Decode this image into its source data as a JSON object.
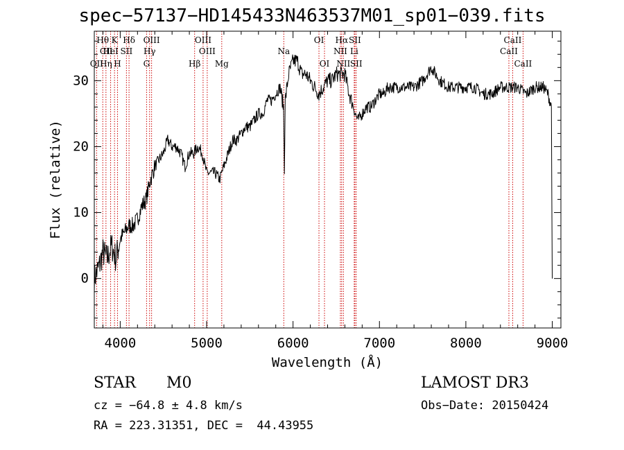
{
  "title": "spec−57137−HD145433N463537M01_sp01−039.fits",
  "chart_data": {
    "type": "line",
    "xlabel": "Wavelength (Å)",
    "ylabel": "Flux (relative)",
    "xlim": [
      3700,
      9100
    ],
    "ylim": [
      -7.5,
      37.5
    ],
    "xticks": [
      4000,
      5000,
      6000,
      7000,
      8000,
      9000
    ],
    "yticks": [
      0,
      10,
      20,
      30
    ],
    "grid": false,
    "series": [
      {
        "x": [
          3700,
          3760,
          3800,
          3850,
          3900,
          3950,
          4000,
          4050,
          4100,
          4150,
          4200,
          4250,
          4300,
          4350,
          4400,
          4450,
          4500,
          4550,
          4600,
          4650,
          4700,
          4750,
          4800,
          4850,
          4900,
          4950,
          5000,
          5050,
          5100,
          5150,
          5200,
          5250,
          5300,
          5350,
          5400,
          5450,
          5500,
          5550,
          5600,
          5650,
          5700,
          5750,
          5800,
          5850,
          5890,
          5900,
          5910,
          5950,
          6000,
          6050,
          6100,
          6150,
          6200,
          6250,
          6300,
          6350,
          6400,
          6450,
          6500,
          6550,
          6600,
          6650,
          6700,
          6720,
          6750,
          6800,
          6850,
          6900,
          6950,
          7000,
          7050,
          7100,
          7150,
          7200,
          7300,
          7400,
          7500,
          7550,
          7600,
          7650,
          7700,
          7800,
          7900,
          8000,
          8100,
          8200,
          8300,
          8400,
          8500,
          8600,
          8700,
          8800,
          8900,
          8950,
          8990,
          9000
        ],
        "y": [
          0,
          2,
          4,
          3,
          5,
          3,
          6,
          7,
          8,
          8,
          9,
          11,
          12,
          15,
          17,
          18,
          19,
          21,
          20,
          20,
          19,
          17,
          19,
          19,
          20,
          19,
          16,
          16,
          16,
          15,
          17,
          19,
          21,
          21,
          22,
          23,
          23,
          24,
          25,
          25,
          27,
          27,
          28,
          29,
          26,
          17,
          27,
          31,
          33,
          33,
          31,
          31,
          30,
          29,
          28,
          29,
          30,
          30,
          31,
          31,
          31,
          28,
          26,
          25,
          24,
          25,
          26,
          26,
          27,
          28,
          28,
          29,
          29,
          29,
          29,
          29,
          30,
          31,
          32,
          31,
          30,
          29,
          29,
          29,
          29,
          28,
          28,
          29,
          29,
          29,
          28,
          29,
          29,
          28,
          26,
          0
        ]
      }
    ],
    "annotations": [
      {
        "label": "Hθ",
        "x": 3798,
        "row": 1
      },
      {
        "label": "CII",
        "x": 3838,
        "row": 2
      },
      {
        "label": "OII",
        "x": 3727,
        "row": 3
      },
      {
        "label": "K",
        "x": 3934,
        "row": 1
      },
      {
        "label": "HeI",
        "x": 3889,
        "row": 2
      },
      {
        "label": "Hη",
        "x": 3835,
        "row": 3
      },
      {
        "label": "Hδ",
        "x": 4102,
        "row": 1
      },
      {
        "label": "SII",
        "x": 4072,
        "row": 2
      },
      {
        "label": "H",
        "x": 3969,
        "row": 3
      },
      {
        "label": "OIII",
        "x": 4363,
        "row": 1
      },
      {
        "label": "Hγ",
        "x": 4340,
        "row": 2
      },
      {
        "label": "G",
        "x": 4305,
        "row": 3
      },
      {
        "label": "OIII",
        "x": 4959,
        "row": 1
      },
      {
        "label": "OIII",
        "x": 5007,
        "row": 2
      },
      {
        "label": "Hβ",
        "x": 4861,
        "row": 3
      },
      {
        "label": "Mg",
        "x": 5175,
        "row": 3
      },
      {
        "label": "Na",
        "x": 5893,
        "row": 2
      },
      {
        "label": "OI",
        "x": 6300,
        "row": 1
      },
      {
        "label": "OI",
        "x": 6364,
        "row": 3
      },
      {
        "label": "Hα",
        "x": 6563,
        "row": 1
      },
      {
        "label": "SII",
        "x": 6716,
        "row": 1
      },
      {
        "label": "NII",
        "x": 6548,
        "row": 2
      },
      {
        "label": "Li",
        "x": 6708,
        "row": 2
      },
      {
        "label": "NII",
        "x": 6583,
        "row": 3
      },
      {
        "label": "SII",
        "x": 6731,
        "row": 3
      },
      {
        "label": "CaII",
        "x": 8542,
        "row": 1
      },
      {
        "label": "CaII",
        "x": 8498,
        "row": 2
      },
      {
        "label": "CaII",
        "x": 8662,
        "row": 3
      }
    ],
    "line_markers": [
      3727,
      3798,
      3835,
      3889,
      3934,
      3969,
      4072,
      4102,
      4305,
      4340,
      4363,
      4861,
      4959,
      5007,
      5175,
      5893,
      6300,
      6364,
      6548,
      6563,
      6583,
      6708,
      6716,
      6731,
      8498,
      8542,
      8662
    ]
  },
  "info": {
    "class": "STAR",
    "subclass": "M0",
    "survey": "LAMOST DR3",
    "cz": "cz = −64.8 ± 4.8 km/s",
    "obs_date": "Obs−Date: 20150424",
    "coords": "RA = 223.31351, DEC =  44.43955"
  },
  "colors": {
    "marker": "#cc0000",
    "line": "#000000"
  }
}
